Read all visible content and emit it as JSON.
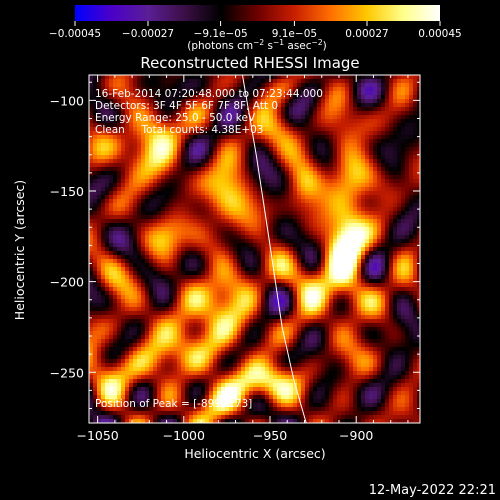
{
  "chart_data": {
    "type": "heatmap",
    "title": "Reconstructed RHESSI Image",
    "xlabel": "Heliocentric X (arcsec)",
    "ylabel": "Heliocentric Y (arcsec)",
    "xlim": [
      -1055,
      -863
    ],
    "ylim": [
      -278,
      -86
    ],
    "x_ticks": [
      -1050,
      -1000,
      -950,
      -900
    ],
    "x_tick_labels": [
      "−1050",
      "−1000",
      "−950",
      "−900"
    ],
    "y_ticks": [
      -250,
      -200,
      -150,
      -100
    ],
    "y_tick_labels": [
      "−250",
      "−200",
      "−150",
      "−100"
    ],
    "colorbar": {
      "min": -0.00045,
      "max": 0.00045,
      "tick_values": [
        -0.00045,
        -0.00027,
        -9.1e-05,
        9.1e-05,
        0.00027,
        0.00045
      ],
      "tick_labels": [
        "−0.00045",
        "−0.00027",
        "−9.1e−05",
        "9.1e−05",
        "0.00027",
        "0.00045"
      ],
      "unit_prefix": "(photons cm",
      "unit_sup1": "−2",
      "unit_mid": " s",
      "unit_sup2": "−1",
      "unit_suffix": " asec",
      "unit_sup3": "−2",
      "unit_end": ")",
      "colors": [
        "#0000ff",
        "#4b00c8",
        "#5a1e96",
        "#3c0f46",
        "#000000",
        "#6e0000",
        "#c81e00",
        "#ff6e00",
        "#ffc800",
        "#ffff8c",
        "#ffffff"
      ]
    },
    "info_lines": [
      "16-Feb-2014 07:20:48.000 to 07:23:44.000",
      "Detectors: 3F 4F 5F 6F 7F 8F, Att 0",
      "Energy Range: 25.0 - 50.0 keV",
      "Clean     Total counts: 4.38E+03"
    ],
    "peak_label": "Position of Peak = [-899,-173]",
    "peak": [
      -899,
      -173
    ],
    "limb_curve": [
      [
        -966,
        -86
      ],
      [
        -958,
        -130
      ],
      [
        -950,
        -180
      ],
      [
        -943,
        -225
      ],
      [
        -936,
        -255
      ],
      [
        -929,
        -278
      ]
    ],
    "hotspots": [
      {
        "x": -905,
        "y": -175,
        "amp": 1.0,
        "sx": 9,
        "sy": 34
      },
      {
        "x": -953,
        "y": -255,
        "amp": 0.95,
        "sx": 12,
        "sy": 8
      },
      {
        "x": -1022,
        "y": -125,
        "amp": 0.8,
        "sx": 13,
        "sy": 12
      },
      {
        "x": -975,
        "y": -155,
        "amp": 0.7,
        "sx": 10,
        "sy": 13
      },
      {
        "x": -995,
        "y": -230,
        "amp": 0.7,
        "sx": 16,
        "sy": 12
      },
      {
        "x": -1035,
        "y": -248,
        "amp": 0.72,
        "sx": 11,
        "sy": 9
      },
      {
        "x": -975,
        "y": -208,
        "amp": 0.68,
        "sx": 10,
        "sy": 12
      },
      {
        "x": -930,
        "y": -200,
        "amp": 0.55,
        "sx": 10,
        "sy": 10
      },
      {
        "x": -1010,
        "y": -175,
        "amp": 0.5,
        "sx": 8,
        "sy": 9
      },
      {
        "x": -945,
        "y": -115,
        "amp": 0.55,
        "sx": 9,
        "sy": 7
      },
      {
        "x": -985,
        "y": -265,
        "amp": 0.6,
        "sx": 12,
        "sy": 8
      },
      {
        "x": -930,
        "y": -145,
        "amp": 0.45,
        "sx": 7,
        "sy": 8
      },
      {
        "x": -1045,
        "y": -200,
        "amp": 0.35,
        "sx": 8,
        "sy": 10
      }
    ],
    "grid": false
  },
  "timestamp": "12-May-2022 22:21"
}
